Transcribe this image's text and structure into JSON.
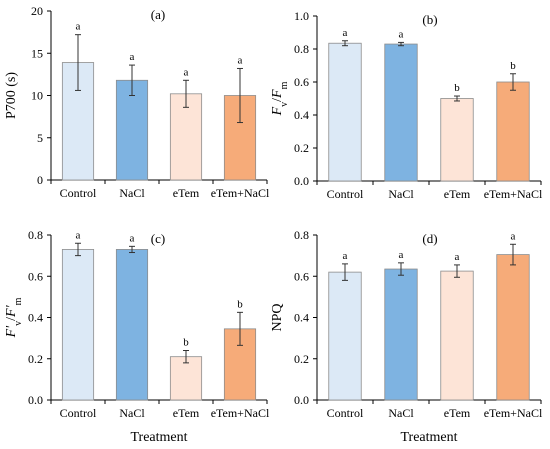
{
  "x_axis_title": "Treatment",
  "chart_data": [
    {
      "type": "bar",
      "panel": "(a)",
      "ylabel": "P700 (s)",
      "categories": [
        "Control",
        "NaCl",
        "eTem",
        "eTem+NaCl"
      ],
      "values": [
        13.9,
        11.8,
        10.2,
        10.0
      ],
      "errors": [
        3.3,
        1.8,
        1.6,
        3.2
      ],
      "letters": [
        "a",
        "a",
        "a",
        "a"
      ],
      "colors": [
        "#dce9f6",
        "#7eb3e1",
        "#fde4d7",
        "#f6ab79"
      ],
      "ylim": [
        0,
        20
      ],
      "yticks": [
        "0",
        "5",
        "10",
        "15",
        "20"
      ]
    },
    {
      "type": "bar",
      "panel": "(b)",
      "ylabel": "Fv/Fm",
      "ylabel_parts": [
        [
          "F",
          "i"
        ],
        [
          "v",
          "sub"
        ],
        [
          "/",
          "n"
        ],
        [
          "F",
          "i"
        ],
        [
          "m",
          "sub"
        ]
      ],
      "categories": [
        "Control",
        "NaCl",
        "eTem",
        "eTem+NaCl"
      ],
      "values": [
        0.835,
        0.83,
        0.5,
        0.6
      ],
      "errors": [
        0.015,
        0.01,
        0.015,
        0.05
      ],
      "letters": [
        "a",
        "a",
        "b",
        "b"
      ],
      "colors": [
        "#dce9f6",
        "#7eb3e1",
        "#fde4d7",
        "#f6ab79"
      ],
      "ylim": [
        0,
        1.0
      ],
      "yticks": [
        "0.0",
        "0.2",
        "0.4",
        "0.6",
        "0.8",
        "1.0"
      ]
    },
    {
      "type": "bar",
      "panel": "(c)",
      "ylabel": "F'v/F'm",
      "ylabel_parts": [
        [
          "F'",
          "i"
        ],
        [
          "v",
          "sub"
        ],
        [
          "/",
          "n"
        ],
        [
          "F'",
          "i"
        ],
        [
          "m",
          "sub"
        ]
      ],
      "categories": [
        "Control",
        "NaCl",
        "eTem",
        "eTem+NaCl"
      ],
      "values": [
        0.73,
        0.73,
        0.21,
        0.345
      ],
      "errors": [
        0.03,
        0.015,
        0.03,
        0.08
      ],
      "letters": [
        "a",
        "a",
        "b",
        "b"
      ],
      "colors": [
        "#dce9f6",
        "#7eb3e1",
        "#fde4d7",
        "#f6ab79"
      ],
      "ylim": [
        0,
        0.8
      ],
      "yticks": [
        "0.0",
        "0.2",
        "0.4",
        "0.6",
        "0.8"
      ]
    },
    {
      "type": "bar",
      "panel": "(d)",
      "ylabel": "NPQ",
      "categories": [
        "Control",
        "NaCl",
        "eTem",
        "eTem+NaCl"
      ],
      "values": [
        0.62,
        0.635,
        0.625,
        0.705
      ],
      "errors": [
        0.04,
        0.03,
        0.03,
        0.05
      ],
      "letters": [
        "a",
        "a",
        "a",
        "a"
      ],
      "colors": [
        "#dce9f6",
        "#7eb3e1",
        "#fde4d7",
        "#f6ab79"
      ],
      "ylim": [
        0,
        0.8
      ],
      "yticks": [
        "0.0",
        "0.2",
        "0.4",
        "0.6",
        "0.8"
      ]
    }
  ]
}
